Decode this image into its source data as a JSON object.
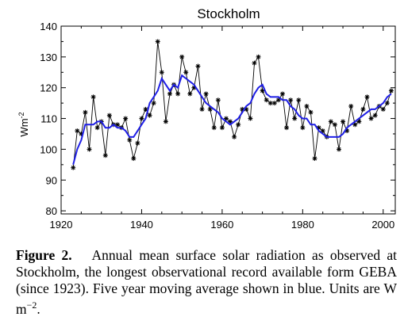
{
  "chart_data": {
    "type": "line",
    "title": "Stockholm",
    "ylabel": "Wm",
    "ylabel_sup": "-2",
    "xlabel": "",
    "xlim": [
      1920,
      2003
    ],
    "ylim": [
      79,
      140
    ],
    "xticks": [
      "1920",
      "1940",
      "1960",
      "1980",
      "2000"
    ],
    "yticks": [
      "80",
      "90",
      "100",
      "110",
      "120",
      "130",
      "140"
    ],
    "grid": false,
    "series": [
      {
        "marker": "asterisk",
        "color": "#000000",
        "x": [
          1923,
          1924,
          1925,
          1926,
          1927,
          1928,
          1929,
          1930,
          1931,
          1932,
          1933,
          1934,
          1935,
          1936,
          1937,
          1938,
          1939,
          1940,
          1941,
          1942,
          1943,
          1944,
          1945,
          1946,
          1947,
          1948,
          1949,
          1950,
          1951,
          1952,
          1953,
          1954,
          1955,
          1956,
          1957,
          1958,
          1959,
          1960,
          1961,
          1962,
          1963,
          1964,
          1965,
          1966,
          1967,
          1968,
          1969,
          1970,
          1971,
          1972,
          1973,
          1974,
          1975,
          1976,
          1977,
          1978,
          1979,
          1980,
          1981,
          1982,
          1983,
          1984,
          1985,
          1986,
          1987,
          1988,
          1989,
          1990,
          1991,
          1992,
          1993,
          1994,
          1995,
          1996,
          1997,
          1998,
          1999,
          2000,
          2001,
          2002
        ],
        "y": [
          94,
          106,
          105,
          112,
          100,
          117,
          107,
          109,
          98,
          111,
          108,
          108,
          107,
          110,
          103,
          97,
          102,
          110,
          113,
          111,
          115,
          135,
          125,
          109,
          118,
          121,
          118,
          130,
          125,
          118,
          120,
          127,
          113,
          118,
          113,
          107,
          116,
          107,
          110,
          109,
          104,
          108,
          113,
          113,
          110,
          128,
          130,
          119,
          116,
          115,
          115,
          116,
          118,
          107,
          116,
          110,
          116,
          107,
          114,
          112,
          97,
          107,
          106,
          104,
          109,
          108,
          100,
          109,
          106,
          114,
          108,
          109,
          113,
          117,
          110,
          111,
          114,
          113,
          115,
          119
        ]
      },
      {
        "name": "5-yr moving average",
        "color": "#1f1fe6",
        "x": [
          1923,
          1924,
          1925,
          1926,
          1927,
          1928,
          1929,
          1930,
          1931,
          1932,
          1933,
          1934,
          1935,
          1936,
          1937,
          1938,
          1939,
          1940,
          1941,
          1942,
          1943,
          1944,
          1945,
          1946,
          1947,
          1948,
          1949,
          1950,
          1951,
          1952,
          1953,
          1954,
          1955,
          1956,
          1957,
          1958,
          1959,
          1960,
          1961,
          1962,
          1963,
          1964,
          1965,
          1966,
          1967,
          1968,
          1969,
          1970,
          1971,
          1972,
          1973,
          1974,
          1975,
          1976,
          1977,
          1978,
          1979,
          1980,
          1981,
          1982,
          1983,
          1984,
          1985,
          1986,
          1987,
          1988,
          1989,
          1990,
          1991,
          1992,
          1993,
          1994,
          1995,
          1996,
          1997,
          1998,
          1999,
          2000,
          2001,
          2002
        ],
        "y": [
          95,
          100,
          103,
          108,
          108,
          108,
          109,
          109,
          107,
          107,
          108,
          107,
          107,
          106,
          104,
          104,
          106,
          108,
          110,
          115,
          117,
          119,
          123,
          121,
          119,
          121,
          120,
          124,
          123,
          122,
          121,
          119,
          117,
          115,
          114,
          113,
          112,
          110,
          109,
          108,
          109,
          110,
          112,
          114,
          115,
          118,
          120,
          121,
          118,
          117,
          117,
          117,
          116,
          116,
          114,
          113,
          111,
          110,
          110,
          108,
          108,
          106,
          105,
          104,
          104,
          104,
          104,
          105,
          107,
          108,
          109,
          110,
          111,
          112,
          113,
          113,
          114,
          115,
          117,
          118
        ]
      }
    ]
  },
  "caption": {
    "label": "Figure 2.",
    "text": "Annual mean surface solar radiation as observed at Stockholm, the longest observational record available form GEBA (since 1923). Five year moving average shown in blue. Units are W m",
    "units_sup": "−2",
    "end": "."
  }
}
